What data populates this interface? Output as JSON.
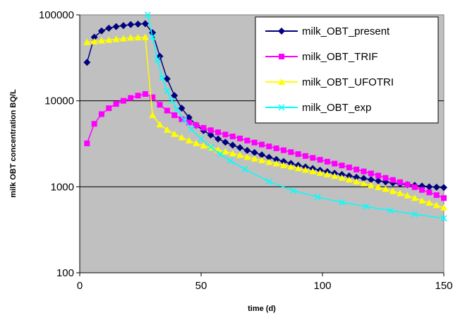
{
  "chart_data": {
    "type": "line",
    "xlabel": "time (d)",
    "ylabel": "milk OBT concentration BQ/L",
    "xlim": [
      0,
      150
    ],
    "ylim": [
      100,
      100000
    ],
    "yscale": "log",
    "xticks": [
      "0",
      "50",
      "100",
      "150"
    ],
    "yticks": [
      "100",
      "1000",
      "10000",
      "100000"
    ],
    "grid": "horizontal",
    "legend_position": "top-right",
    "colors": {
      "plot_bg": "#c0c0c0"
    },
    "series": [
      {
        "name": "milk_OBT_present",
        "color": "#000080",
        "marker": "diamond",
        "x": [
          3,
          6,
          9,
          12,
          15,
          18,
          21,
          24,
          27,
          30,
          33,
          36,
          39,
          42,
          45,
          48,
          51,
          54,
          57,
          60,
          63,
          66,
          69,
          72,
          75,
          78,
          81,
          84,
          87,
          90,
          93,
          96,
          99,
          102,
          105,
          108,
          111,
          114,
          117,
          120,
          123,
          126,
          129,
          132,
          135,
          138,
          141,
          144,
          147,
          150
        ],
        "values": [
          28000,
          55000,
          65000,
          70000,
          73000,
          75000,
          77000,
          78000,
          79000,
          62000,
          33000,
          18000,
          11500,
          8200,
          6400,
          5200,
          4500,
          4000,
          3600,
          3300,
          3050,
          2850,
          2650,
          2500,
          2350,
          2200,
          2080,
          1970,
          1870,
          1780,
          1700,
          1630,
          1560,
          1500,
          1440,
          1390,
          1340,
          1290,
          1250,
          1210,
          1170,
          1140,
          1110,
          1080,
          1060,
          1040,
          1020,
          1000,
          990,
          980
        ]
      },
      {
        "name": "milk_OBT_TRIF",
        "color": "#ff00ff",
        "marker": "square",
        "x": [
          3,
          6,
          9,
          12,
          15,
          18,
          21,
          24,
          27,
          30,
          33,
          36,
          39,
          42,
          45,
          48,
          51,
          54,
          57,
          60,
          63,
          66,
          69,
          72,
          75,
          78,
          81,
          84,
          87,
          90,
          93,
          96,
          99,
          102,
          105,
          108,
          111,
          114,
          117,
          120,
          123,
          126,
          129,
          132,
          135,
          138,
          141,
          144,
          147,
          150
        ],
        "values": [
          3200,
          5400,
          7000,
          8200,
          9200,
          10000,
          10800,
          11500,
          12000,
          11000,
          9000,
          7700,
          6800,
          6100,
          5600,
          5200,
          4850,
          4550,
          4300,
          4050,
          3850,
          3650,
          3450,
          3270,
          3100,
          2950,
          2800,
          2660,
          2530,
          2400,
          2280,
          2170,
          2060,
          1960,
          1860,
          1770,
          1680,
          1590,
          1510,
          1430,
          1350,
          1270,
          1200,
          1130,
          1060,
          990,
          920,
          860,
          800,
          740
        ]
      },
      {
        "name": "milk_OBT_UFOTRI",
        "color": "#ffff00",
        "marker": "triangle",
        "x": [
          3,
          6,
          9,
          12,
          15,
          18,
          21,
          24,
          27,
          30,
          33,
          36,
          39,
          42,
          45,
          48,
          51,
          54,
          57,
          60,
          63,
          66,
          69,
          72,
          75,
          78,
          81,
          84,
          87,
          90,
          93,
          96,
          99,
          102,
          105,
          108,
          111,
          114,
          117,
          120,
          123,
          126,
          129,
          132,
          135,
          138,
          141,
          144,
          147,
          150
        ],
        "values": [
          48000,
          49000,
          50000,
          51000,
          52000,
          53000,
          54000,
          54500,
          55000,
          6800,
          5300,
          4600,
          4100,
          3750,
          3450,
          3200,
          3000,
          2850,
          2700,
          2560,
          2440,
          2330,
          2220,
          2120,
          2030,
          1940,
          1860,
          1780,
          1710,
          1640,
          1570,
          1510,
          1450,
          1390,
          1330,
          1270,
          1210,
          1150,
          1090,
          1040,
          990,
          940,
          890,
          840,
          790,
          740,
          690,
          650,
          610,
          570
        ]
      },
      {
        "name": "milk_OBT_exp",
        "color": "#00ffff",
        "marker": "x",
        "x": [
          28,
          30,
          32,
          34,
          36,
          38,
          40,
          43,
          46,
          50,
          54,
          58,
          62,
          68,
          78,
          88,
          98,
          108,
          118,
          128,
          138,
          150
        ],
        "values": [
          100000,
          55000,
          30000,
          18500,
          13000,
          10000,
          8000,
          6000,
          4700,
          3600,
          2900,
          2400,
          2000,
          1600,
          1150,
          900,
          760,
          660,
          590,
          530,
          480,
          430
        ]
      }
    ]
  }
}
